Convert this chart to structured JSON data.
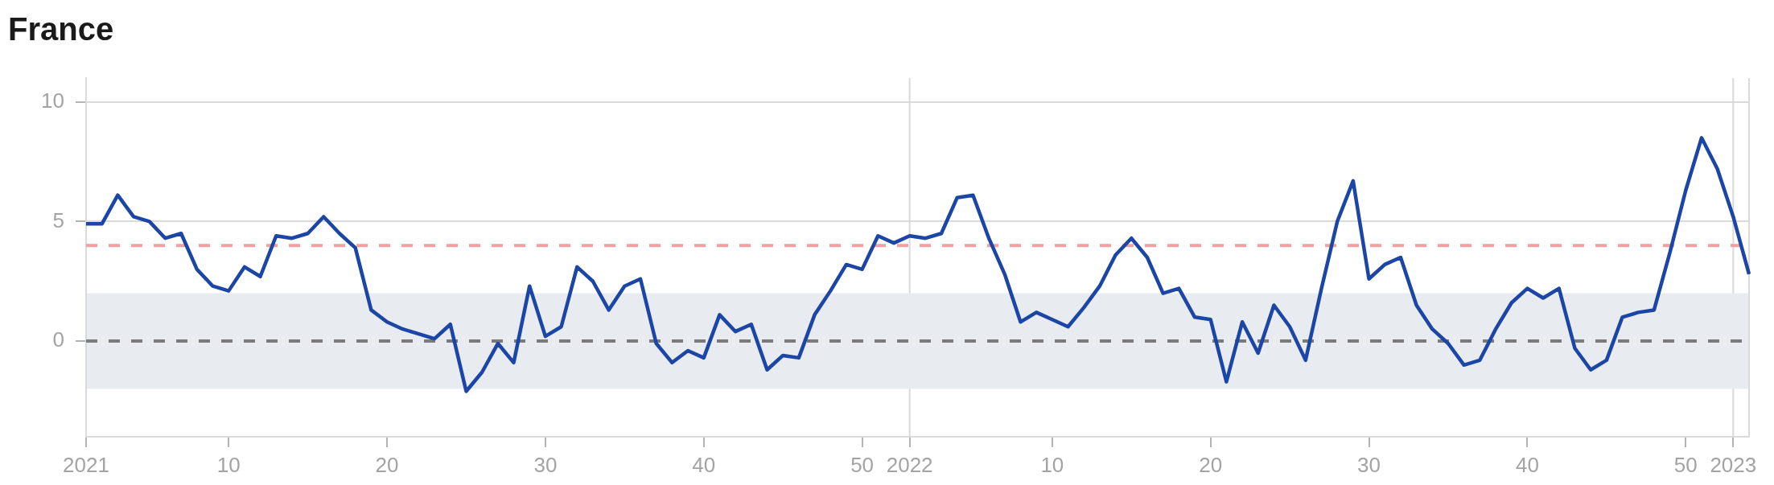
{
  "chart_data": {
    "type": "line",
    "title": "France",
    "categories": [
      "2021",
      null,
      null,
      null,
      null,
      null,
      null,
      null,
      null,
      "10",
      null,
      null,
      null,
      null,
      null,
      null,
      null,
      null,
      null,
      "20",
      null,
      null,
      null,
      null,
      null,
      null,
      null,
      null,
      null,
      "30",
      null,
      null,
      null,
      null,
      null,
      null,
      null,
      null,
      null,
      "40",
      null,
      null,
      null,
      null,
      null,
      null,
      null,
      null,
      null,
      "50",
      null,
      null,
      "2022",
      null,
      null,
      null,
      null,
      null,
      null,
      null,
      null,
      "10",
      null,
      null,
      null,
      null,
      null,
      null,
      null,
      null,
      null,
      "20",
      null,
      null,
      null,
      null,
      null,
      null,
      null,
      null,
      null,
      "30",
      null,
      null,
      null,
      null,
      null,
      null,
      null,
      null,
      null,
      "40",
      null,
      null,
      null,
      null,
      null,
      null,
      null,
      null,
      null,
      "50",
      null,
      null,
      "2023",
      null
    ],
    "series": [
      {
        "color": "#1c46a6",
        "values": [
          4.9,
          4.9,
          6.1,
          5.2,
          5.0,
          4.3,
          4.5,
          3.0,
          2.3,
          2.1,
          3.1,
          2.7,
          4.4,
          4.3,
          4.5,
          5.2,
          4.5,
          3.9,
          1.3,
          0.8,
          0.5,
          0.3,
          0.1,
          0.7,
          -2.1,
          -1.3,
          -0.1,
          -0.9,
          2.3,
          0.2,
          0.6,
          3.1,
          2.5,
          1.3,
          2.3,
          2.6,
          -0.1,
          -0.9,
          -0.4,
          -0.7,
          1.1,
          0.4,
          0.7,
          -1.2,
          -0.6,
          -0.7,
          1.1,
          2.1,
          3.2,
          3.0,
          4.4,
          4.1,
          4.4,
          4.3,
          4.5,
          6.0,
          6.1,
          4.3,
          2.8,
          0.8,
          1.2,
          0.9,
          0.6,
          1.4,
          2.3,
          3.6,
          4.3,
          3.5,
          2.0,
          2.2,
          1.0,
          0.9,
          -1.7,
          0.8,
          -0.5,
          1.5,
          0.6,
          -0.8,
          2.2,
          5.0,
          6.7,
          2.6,
          3.2,
          3.5,
          1.5,
          0.5,
          -0.1,
          -1.0,
          -0.8,
          0.5,
          1.6,
          2.2,
          1.8,
          2.2,
          -0.3,
          -1.2,
          -0.8,
          1.0,
          1.2,
          1.3,
          3.7,
          6.3,
          8.5,
          7.2,
          5.2,
          2.8
        ]
      }
    ],
    "ylim": [
      -4,
      11
    ],
    "yticks": [
      0,
      5,
      10
    ],
    "grid": "y",
    "marker": "none",
    "ref_lines": [
      {
        "axis": "x",
        "value": "2022",
        "color": "#d9d9d9"
      },
      {
        "axis": "x",
        "value": "2023",
        "color": "#d9d9d9"
      },
      {
        "axis": "y",
        "value": 0,
        "color": "#7a7a7a",
        "line_style": "dashed"
      },
      {
        "axis": "y",
        "value": 4,
        "color": "#f4a0a3",
        "line_style": "dashed"
      }
    ],
    "bands": [
      {
        "axis": "y",
        "from": -2,
        "to": 2,
        "color": "#e8ecf1"
      }
    ]
  }
}
